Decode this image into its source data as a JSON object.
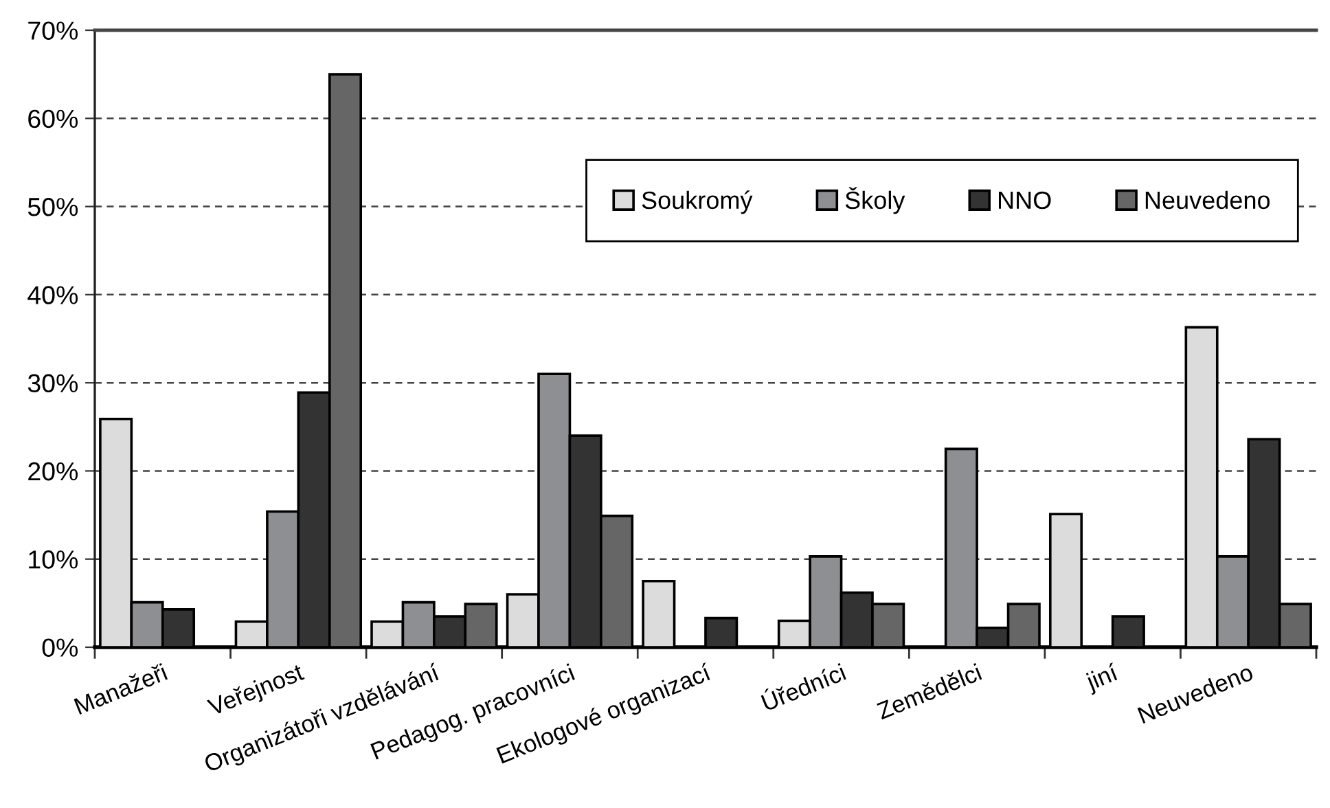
{
  "chart_data": {
    "type": "bar",
    "categories": [
      "Manažeři",
      "Veřejnost",
      "Organizátoři vzdělávání",
      "Pedagog. pracovníci",
      "Ekologové organizací",
      "Úředníci",
      "Zemědělci",
      "jiní",
      "Neuvedeno"
    ],
    "series": [
      {
        "name": "Soukromý",
        "color": "#dcdcdc",
        "values": [
          25.9,
          2.9,
          2.9,
          6.0,
          7.5,
          3.0,
          null,
          15.1,
          36.3
        ]
      },
      {
        "name": "Školy",
        "color": "#8e8f93",
        "values": [
          5.1,
          15.4,
          5.1,
          31.0,
          null,
          10.3,
          22.5,
          null,
          10.3
        ]
      },
      {
        "name": "NNO",
        "color": "#333333",
        "values": [
          4.3,
          28.9,
          3.5,
          24.0,
          3.3,
          6.2,
          2.2,
          3.5,
          23.6
        ]
      },
      {
        "name": "Neuvedeno",
        "color": "#666666",
        "values": [
          null,
          65.0,
          4.9,
          14.9,
          null,
          4.9,
          4.9,
          null,
          4.9
        ]
      }
    ],
    "ylim": [
      0,
      70
    ],
    "yticks": [
      {
        "value": 0,
        "label": "0%"
      },
      {
        "value": 10,
        "label": "10%"
      },
      {
        "value": 20,
        "label": "20%"
      },
      {
        "value": 30,
        "label": "30%"
      },
      {
        "value": 40,
        "label": "40%"
      },
      {
        "value": 50,
        "label": "50%"
      },
      {
        "value": 60,
        "label": "60%"
      },
      {
        "value": 70,
        "label": "70%"
      }
    ],
    "grid": "y",
    "legend": "top right"
  }
}
